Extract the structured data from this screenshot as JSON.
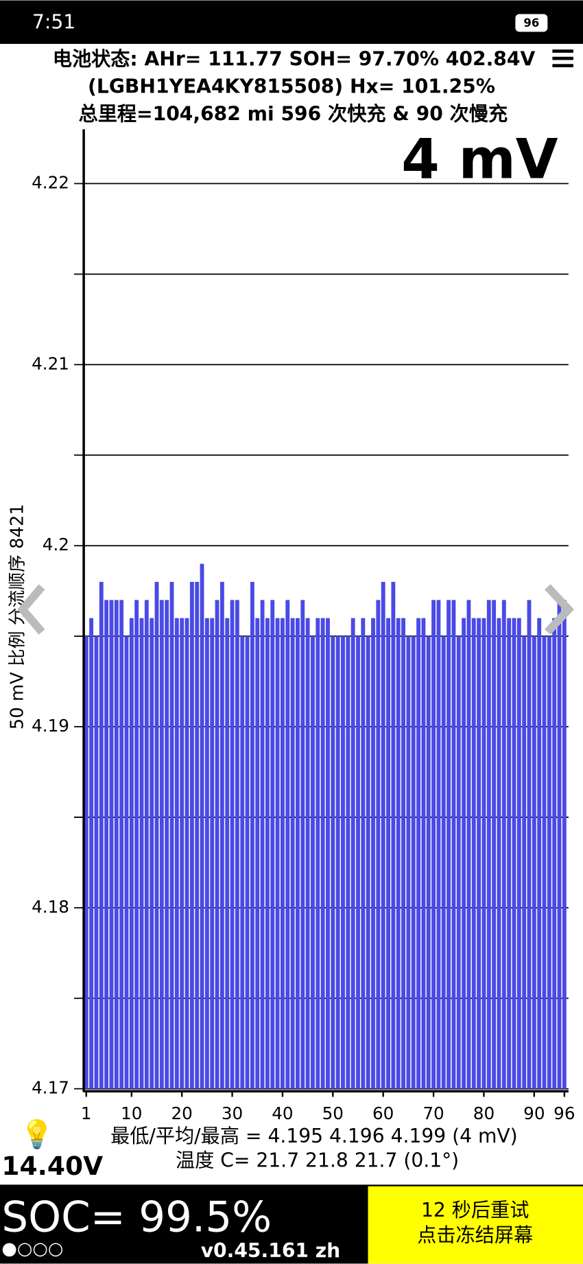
{
  "status_bar": {
    "time": "7:51",
    "battery": "96"
  },
  "header": {
    "line1": "电池状态: AHr= 111.77 SOH= 97.70% 402.84V",
    "line2": "(LGBH1YEA4KY815508)   Hx= 101.25%",
    "line3": "总里程=104,682 mi 596 次快充 & 90 次慢充"
  },
  "chart_data": {
    "type": "bar",
    "annotation": "4 mV",
    "y_label": "50 mV 比例   分流顺序 8421",
    "color": "#4a4ae6",
    "x": [
      1,
      2,
      3,
      4,
      5,
      6,
      7,
      8,
      9,
      10,
      11,
      12,
      13,
      14,
      15,
      16,
      17,
      18,
      19,
      20,
      21,
      22,
      23,
      24,
      25,
      26,
      27,
      28,
      29,
      30,
      31,
      32,
      33,
      34,
      35,
      36,
      37,
      38,
      39,
      40,
      41,
      42,
      43,
      44,
      45,
      46,
      47,
      48,
      49,
      50,
      51,
      52,
      53,
      54,
      55,
      56,
      57,
      58,
      59,
      60,
      61,
      62,
      63,
      64,
      65,
      66,
      67,
      68,
      69,
      70,
      71,
      72,
      73,
      74,
      75,
      76,
      77,
      78,
      79,
      80,
      81,
      82,
      83,
      84,
      85,
      86,
      87,
      88,
      89,
      90,
      91,
      92,
      93,
      94,
      95,
      96
    ],
    "values": [
      4.195,
      4.196,
      4.195,
      4.198,
      4.197,
      4.197,
      4.197,
      4.197,
      4.195,
      4.196,
      4.197,
      4.196,
      4.197,
      4.196,
      4.198,
      4.197,
      4.197,
      4.198,
      4.196,
      4.196,
      4.196,
      4.198,
      4.198,
      4.199,
      4.196,
      4.196,
      4.197,
      4.198,
      4.196,
      4.197,
      4.197,
      4.195,
      4.195,
      4.198,
      4.196,
      4.197,
      4.196,
      4.197,
      4.196,
      4.196,
      4.197,
      4.196,
      4.196,
      4.197,
      4.196,
      4.195,
      4.196,
      4.196,
      4.196,
      4.195,
      4.195,
      4.195,
      4.195,
      4.196,
      4.195,
      4.196,
      4.195,
      4.196,
      4.197,
      4.198,
      4.196,
      4.198,
      4.196,
      4.196,
      4.195,
      4.195,
      4.196,
      4.196,
      4.195,
      4.197,
      4.197,
      4.195,
      4.197,
      4.197,
      4.195,
      4.196,
      4.197,
      4.196,
      4.196,
      4.196,
      4.197,
      4.197,
      4.196,
      4.197,
      4.196,
      4.196,
      4.196,
      4.195,
      4.197,
      4.195,
      4.196,
      4.195,
      4.195,
      4.196,
      4.197,
      4.197
    ],
    "xlim": [
      0.5,
      96.5
    ],
    "xticks": [
      1,
      10,
      20,
      30,
      40,
      50,
      60,
      70,
      80,
      90,
      96
    ],
    "ylim": [
      4.17,
      4.223
    ],
    "yticks": [
      4.17,
      4.18,
      4.19,
      4.2,
      4.21,
      4.22
    ],
    "minor_yticks": [
      4.175,
      4.185,
      4.195,
      4.205,
      4.215
    ],
    "grid": true
  },
  "footer": {
    "stats": "最低/平均/最高 = 4.195 4.196 4.199  (4 mV)",
    "temps": "温度 C= 21.7  21.8  21.7  (0.1°)",
    "aux_voltage": "14.40V",
    "soc": "SOC= 99.5%",
    "dots": "●○○○",
    "version": "v0.45.161 zh",
    "retry": "12 秒后重试",
    "freeze": "点击冻结屏幕"
  }
}
